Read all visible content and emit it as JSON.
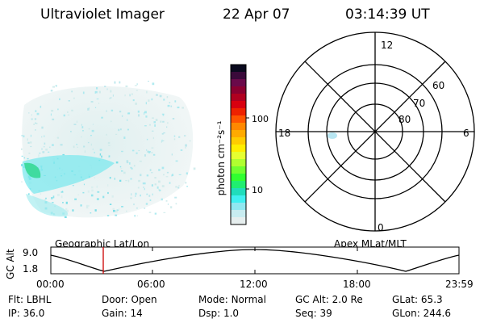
{
  "header": {
    "instrument": "Ultraviolet Imager",
    "date": "22 Apr 07",
    "time": "03:14:39 UT"
  },
  "colorbar": {
    "label": "photon cm⁻²s⁻¹",
    "tick_labels": [
      "100",
      "10"
    ],
    "colors": [
      "#0a0a1e",
      "#3a0a3a",
      "#6a0a4a",
      "#8a0030",
      "#b00020",
      "#d80010",
      "#ee2200",
      "#ff5500",
      "#ff8800",
      "#ffaa00",
      "#ffcc00",
      "#ffee00",
      "#e6ff30",
      "#b0ff30",
      "#70ff30",
      "#30ff30",
      "#20ee70",
      "#20ddbb",
      "#40f0f0",
      "#90e8f0",
      "#c8ecf0",
      "#e6eeee"
    ]
  },
  "polar_plot": {
    "mlt_labels": [
      "12",
      "6",
      "0",
      "18"
    ],
    "lat_labels": [
      "60",
      "70",
      "80"
    ]
  },
  "orbit": {
    "left_label": "Geographic Lat/Lon",
    "right_label": "Apex MLat/MLT",
    "y_axis_label": "GC Alt",
    "y_ticks": [
      "9.0",
      "1.8"
    ],
    "x_ticks": [
      "00:00",
      "06:00",
      "12:00",
      "18:00",
      "23:59"
    ],
    "current_time_color": "#cc0000"
  },
  "info": {
    "row1": [
      {
        "label": "Flt:",
        "value": "LBHL"
      },
      {
        "label": "Door:",
        "value": "Open"
      },
      {
        "label": "Mode:",
        "value": "Normal"
      },
      {
        "label": "GC Alt:",
        "value": "2.0 Re"
      },
      {
        "label": "GLat:",
        "value": "65.3"
      }
    ],
    "row2": [
      {
        "label": "IP:",
        "value": "36.0"
      },
      {
        "label": "Gain:",
        "value": "14"
      },
      {
        "label": "Dsp:",
        "value": "1.0"
      },
      {
        "label": "Seq:",
        "value": "39"
      },
      {
        "label": "GLon:",
        "value": "244.6"
      }
    ]
  }
}
